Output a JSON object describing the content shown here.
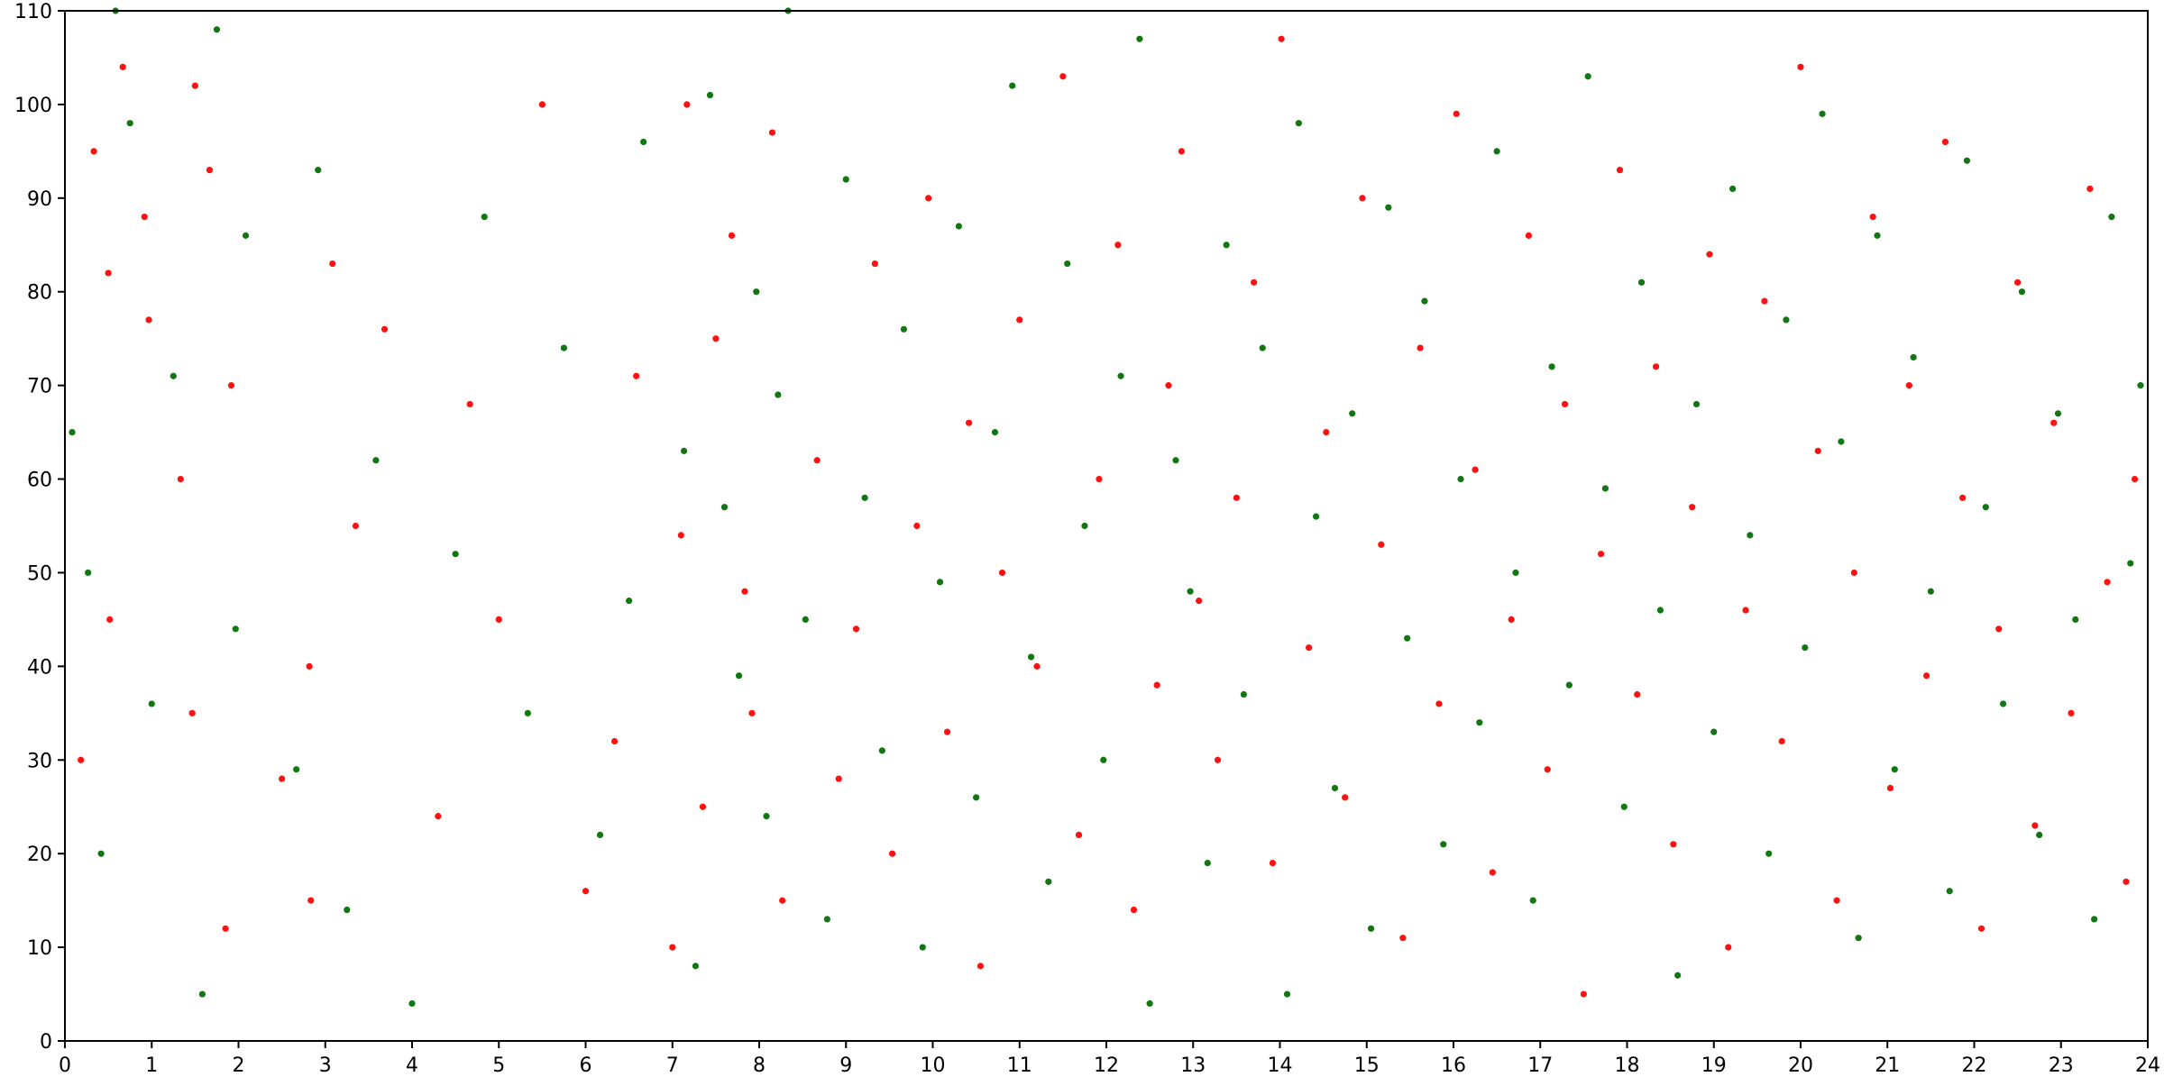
{
  "chart_data": {
    "type": "scatter",
    "title": "",
    "xlabel": "",
    "ylabel": "",
    "xlim": [
      0,
      24
    ],
    "ylim": [
      0,
      110
    ],
    "xticks": [
      0,
      1,
      2,
      3,
      4,
      5,
      6,
      7,
      8,
      9,
      10,
      11,
      12,
      13,
      14,
      15,
      16,
      17,
      18,
      19,
      20,
      21,
      22,
      23,
      24
    ],
    "yticks": [
      0,
      10,
      20,
      30,
      40,
      50,
      60,
      70,
      80,
      90,
      100,
      110
    ],
    "grid": false,
    "legend": "none",
    "colors": {
      "red": "#ff1111",
      "green": "#117711"
    },
    "x_step_min": 0.05,
    "y_step": 1,
    "series": [
      {
        "name": "",
        "color": "#ff1111",
        "x_min": [
          11,
          20,
          30,
          31,
          40,
          55,
          58,
          80,
          88,
          90,
          100,
          111,
          115,
          150,
          169,
          170,
          185,
          201,
          221,
          258,
          280,
          300,
          330,
          360,
          380,
          395,
          420,
          426,
          430,
          441,
          450,
          461,
          470,
          475,
          489,
          496,
          520,
          535,
          547,
          560,
          572,
          589,
          597,
          610,
          625,
          633,
          648,
          660,
          672,
          690,
          701,
          715,
          728,
          739,
          755,
          763,
          772,
          784,
          797,
          810,
          822,
          835,
          841,
          860,
          872,
          885,
          897,
          910,
          925,
          937,
          950,
          962,
          975,
          987,
          1000,
          1012,
          1025,
          1037,
          1050,
          1062,
          1075,
          1087,
          1100,
          1112,
          1125,
          1137,
          1150,
          1162,
          1175,
          1187,
          1200,
          1212,
          1225,
          1237,
          1250,
          1262,
          1275,
          1287,
          1300,
          1312,
          1325,
          1337,
          1350,
          1362,
          1375,
          1387,
          1400,
          1412,
          1425,
          1431
        ],
        "y": [
          30,
          95,
          82,
          45,
          104,
          88,
          77,
          60,
          35,
          102,
          93,
          12,
          70,
          28,
          40,
          15,
          83,
          55,
          76,
          24,
          68,
          45,
          100,
          16,
          32,
          71,
          10,
          54,
          100,
          25,
          75,
          86,
          48,
          35,
          97,
          15,
          62,
          28,
          44,
          83,
          20,
          55,
          90,
          33,
          66,
          8,
          50,
          77,
          40,
          103,
          22,
          60,
          85,
          14,
          38,
          70,
          95,
          47,
          30,
          58,
          81,
          19,
          107,
          42,
          65,
          26,
          90,
          53,
          11,
          74,
          36,
          99,
          61,
          18,
          45,
          86,
          29,
          68,
          5,
          52,
          93,
          37,
          72,
          21,
          57,
          84,
          10,
          46,
          79,
          32,
          104,
          63,
          15,
          50,
          88,
          27,
          70,
          39,
          96,
          58,
          12,
          44,
          81,
          23,
          66,
          35,
          91,
          49,
          17,
          60
        ]
      },
      {
        "name": "",
        "color": "#117711",
        "x_min": [
          5,
          16,
          25,
          35,
          45,
          60,
          75,
          95,
          105,
          118,
          125,
          160,
          175,
          195,
          215,
          240,
          270,
          290,
          320,
          345,
          370,
          390,
          400,
          428,
          436,
          446,
          456,
          466,
          478,
          485,
          493,
          500,
          512,
          527,
          540,
          553,
          565,
          580,
          593,
          605,
          618,
          630,
          643,
          655,
          668,
          680,
          693,
          705,
          718,
          730,
          743,
          750,
          768,
          778,
          790,
          803,
          815,
          828,
          845,
          853,
          865,
          878,
          890,
          903,
          915,
          928,
          940,
          953,
          965,
          978,
          990,
          1003,
          1015,
          1028,
          1040,
          1053,
          1065,
          1078,
          1090,
          1103,
          1115,
          1128,
          1140,
          1153,
          1165,
          1178,
          1190,
          1203,
          1215,
          1228,
          1240,
          1253,
          1265,
          1278,
          1290,
          1303,
          1315,
          1328,
          1340,
          1353,
          1365,
          1378,
          1390,
          1403,
          1415,
          1428,
          1435
        ],
        "y": [
          65,
          50,
          20,
          110,
          98,
          36,
          71,
          5,
          108,
          44,
          86,
          29,
          93,
          14,
          62,
          4,
          52,
          88,
          35,
          74,
          22,
          47,
          96,
          63,
          8,
          101,
          57,
          39,
          80,
          24,
          69,
          110,
          45,
          13,
          92,
          58,
          31,
          76,
          10,
          49,
          87,
          26,
          65,
          102,
          41,
          17,
          83,
          55,
          30,
          71,
          107,
          4,
          62,
          48,
          19,
          85,
          37,
          74,
          5,
          98,
          56,
          27,
          67,
          12,
          89,
          43,
          79,
          21,
          60,
          34,
          95,
          50,
          15,
          72,
          38,
          103,
          59,
          25,
          81,
          46,
          7,
          68,
          33,
          91,
          54,
          20,
          77,
          42,
          99,
          64,
          11,
          86,
          29,
          73,
          48,
          16,
          94,
          57,
          36,
          80,
          22,
          67,
          45,
          13,
          88,
          51,
          70
        ]
      }
    ]
  }
}
